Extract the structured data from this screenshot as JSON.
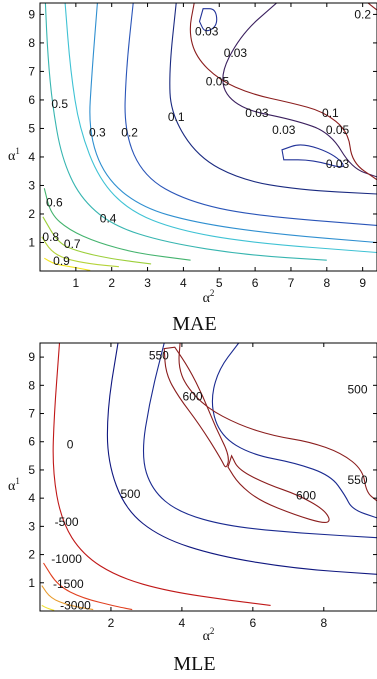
{
  "chart_data": [
    {
      "type": "contour",
      "title": "MAE",
      "xlabel": "α",
      "xlabel_sup": "2",
      "ylabel": "α",
      "ylabel_sup": "1",
      "xlim": [
        0,
        9.4
      ],
      "ylim": [
        0,
        9.4
      ],
      "xticks": [
        1,
        2,
        3,
        4,
        5,
        6,
        7,
        8,
        9
      ],
      "yticks": [
        1,
        2,
        3,
        4,
        5,
        6,
        7,
        8,
        9
      ],
      "levels": [
        {
          "level": "0.9",
          "color": "#f2e620",
          "points": [
            [
              0.12,
              0.45
            ],
            [
              0.35,
              0.28
            ],
            [
              0.6,
              0.2
            ],
            [
              1.0,
              0.12
            ],
            [
              1.4,
              0.02
            ]
          ]
        },
        {
          "level": "0.8",
          "color": "#b5d33a",
          "points": [
            [
              0.05,
              1.2
            ],
            [
              0.3,
              0.7
            ],
            [
              0.7,
              0.42
            ],
            [
              1.4,
              0.25
            ],
            [
              2.2,
              0.15
            ]
          ]
        },
        {
          "level": "0.7",
          "color": "#9ccf3a",
          "points": [
            [
              0.08,
              1.9
            ],
            [
              0.5,
              1.0
            ],
            [
              1.0,
              0.7
            ],
            [
              2.0,
              0.42
            ],
            [
              3.1,
              0.25
            ]
          ]
        },
        {
          "level": "0.6",
          "color": "#44b36e",
          "points": [
            [
              0.12,
              2.9
            ],
            [
              0.3,
              2.0
            ],
            [
              0.8,
              1.45
            ],
            [
              1.6,
              1.0
            ],
            [
              2.7,
              0.62
            ],
            [
              4.2,
              0.38
            ]
          ]
        },
        {
          "level": "0.5",
          "color": "#37b5b0",
          "points": [
            [
              0.15,
              9.4
            ],
            [
              0.22,
              7.5
            ],
            [
              0.35,
              5.8
            ],
            [
              0.6,
              4.0
            ],
            [
              1.1,
              2.6
            ],
            [
              2.0,
              1.6
            ],
            [
              3.5,
              1.0
            ],
            [
              5.8,
              0.55
            ],
            [
              8.0,
              0.38
            ]
          ]
        },
        {
          "level": "0.4",
          "color": "#3fc2d4",
          "points": [
            [
              0.7,
              9.4
            ],
            [
              0.85,
              7.0
            ],
            [
              1.1,
              5.0
            ],
            [
              1.65,
              3.2
            ],
            [
              2.5,
              2.1
            ],
            [
              3.8,
              1.45
            ],
            [
              5.8,
              1.0
            ],
            [
              9.4,
              0.65
            ]
          ]
        },
        {
          "level": "0.3",
          "color": "#2f8fd0",
          "points": [
            [
              1.6,
              9.4
            ],
            [
              1.45,
              7.0
            ],
            [
              1.35,
              4.9
            ],
            [
              1.8,
              3.3
            ],
            [
              2.8,
              2.25
            ],
            [
              4.3,
              1.7
            ],
            [
              6.5,
              1.3
            ],
            [
              9.4,
              1.0
            ]
          ]
        },
        {
          "level": "0.2",
          "color": "#2a55b8",
          "points": [
            [
              2.6,
              9.4
            ],
            [
              2.4,
              7.0
            ],
            [
              2.35,
              4.85
            ],
            [
              2.9,
              3.3
            ],
            [
              4.1,
              2.45
            ],
            [
              5.9,
              1.95
            ],
            [
              9.4,
              1.6
            ]
          ]
        },
        {
          "level": "0.1",
          "color": "#1a2a80",
          "points": [
            [
              3.8,
              9.4
            ],
            [
              3.6,
              7.0
            ],
            [
              3.65,
              5.5
            ],
            [
              4.4,
              4.0
            ],
            [
              5.6,
              3.2
            ],
            [
              7.2,
              2.85
            ],
            [
              9.4,
              2.7
            ]
          ]
        },
        {
          "level": "0.05",
          "color": "#3a1f5e",
          "points": [
            [
              6.6,
              9.4
            ],
            [
              5.6,
              8.3
            ],
            [
              4.95,
              6.7
            ],
            [
              5.5,
              5.7
            ],
            [
              7.1,
              5.3
            ],
            [
              8.1,
              4.85
            ],
            [
              8.7,
              3.6
            ],
            [
              9.4,
              3.3
            ]
          ]
        },
        {
          "level": "0.2",
          "color": "#8b1e1e",
          "points": [
            [
              4.3,
              9.4
            ],
            [
              4.15,
              8.4
            ],
            [
              4.35,
              7.5
            ],
            [
              5.0,
              6.7
            ],
            [
              5.9,
              6.2
            ],
            [
              7.0,
              5.9
            ],
            [
              7.9,
              5.6
            ],
            [
              8.6,
              4.9
            ],
            [
              8.7,
              3.8
            ],
            [
              9.4,
              3.2
            ]
          ]
        },
        {
          "level": "0.03",
          "color": "#223399",
          "closed": true,
          "points": [
            [
              4.55,
              9.2
            ],
            [
              4.9,
              9.2
            ],
            [
              4.95,
              8.6
            ],
            [
              4.6,
              8.35
            ],
            [
              4.45,
              8.75
            ]
          ]
        },
        {
          "level": "0.03",
          "color": "#223399",
          "closed": true,
          "points": [
            [
              6.75,
              4.25
            ],
            [
              7.3,
              4.5
            ],
            [
              8.2,
              4.1
            ],
            [
              8.6,
              3.55
            ],
            [
              7.6,
              3.9
            ],
            [
              6.8,
              3.9
            ]
          ]
        },
        {
          "level": "0.3",
          "color": "#8b1e1e",
          "points": [
            [
              9.15,
              9.4
            ],
            [
              9.4,
              9.15
            ]
          ]
        }
      ],
      "labels": [
        {
          "text": "0.2",
          "x": 9.0,
          "y": 9.0
        },
        {
          "text": "0.03",
          "x": 4.65,
          "y": 8.4
        },
        {
          "text": "0.03",
          "x": 5.45,
          "y": 7.65
        },
        {
          "text": "0.05",
          "x": 4.95,
          "y": 6.65
        },
        {
          "text": "0.03",
          "x": 6.05,
          "y": 5.55
        },
        {
          "text": "0.1",
          "x": 8.1,
          "y": 5.55
        },
        {
          "text": "0.5",
          "x": 0.55,
          "y": 5.85
        },
        {
          "text": "0.1",
          "x": 3.8,
          "y": 5.4
        },
        {
          "text": "0.3",
          "x": 1.6,
          "y": 4.85
        },
        {
          "text": "0.2",
          "x": 2.5,
          "y": 4.85
        },
        {
          "text": "0.03",
          "x": 6.8,
          "y": 4.95
        },
        {
          "text": "0.05",
          "x": 8.3,
          "y": 4.95
        },
        {
          "text": "0.03",
          "x": 8.3,
          "y": 3.75
        },
        {
          "text": "0.6",
          "x": 0.4,
          "y": 2.4
        },
        {
          "text": "0.4",
          "x": 1.9,
          "y": 1.85
        },
        {
          "text": "0.8",
          "x": 0.3,
          "y": 1.2
        },
        {
          "text": "0.7",
          "x": 0.9,
          "y": 0.95
        },
        {
          "text": "0.9",
          "x": 0.6,
          "y": 0.35
        }
      ]
    },
    {
      "type": "contour",
      "title": "MLE",
      "xlabel": "α",
      "xlabel_sup": "2",
      "ylabel": "α",
      "ylabel_sup": "1",
      "xlim": [
        0,
        9.5
      ],
      "ylim": [
        0,
        9.5
      ],
      "xticks": [
        2,
        4,
        6,
        8
      ],
      "yticks": [
        1,
        2,
        3,
        4,
        5,
        6,
        7,
        8,
        9
      ],
      "levels": [
        {
          "level": "-3000",
          "color": "#f0e030",
          "points": [
            [
              0.05,
              0.2
            ],
            [
              0.2,
              0.1
            ],
            [
              0.4,
              0.02
            ]
          ]
        },
        {
          "level": "-1500",
          "color": "#e89a2a",
          "points": [
            [
              0.05,
              0.9
            ],
            [
              0.3,
              0.45
            ],
            [
              0.8,
              0.2
            ],
            [
              1.5,
              0.05
            ]
          ]
        },
        {
          "level": "-1000",
          "color": "#e04020",
          "points": [
            [
              0.1,
              1.7
            ],
            [
              0.5,
              0.9
            ],
            [
              1.2,
              0.45
            ],
            [
              2.2,
              0.15
            ],
            [
              2.6,
              0.05
            ]
          ]
        },
        {
          "level": "-500",
          "color": "#c01818",
          "points": [
            [
              0.55,
              9.5
            ],
            [
              0.4,
              7.0
            ],
            [
              0.35,
              5.0
            ],
            [
              0.6,
              3.2
            ],
            [
              1.2,
              2.0
            ],
            [
              2.2,
              1.2
            ],
            [
              3.6,
              0.7
            ],
            [
              5.5,
              0.35
            ],
            [
              6.5,
              0.2
            ]
          ]
        },
        {
          "level": "0",
          "color": "#101880",
          "points": [
            [
              2.2,
              9.5
            ],
            [
              1.9,
              7.2
            ],
            [
              1.9,
              5.3
            ],
            [
              2.4,
              3.6
            ],
            [
              3.4,
              2.6
            ],
            [
              5.0,
              1.95
            ],
            [
              7.2,
              1.5
            ],
            [
              9.5,
              1.3
            ]
          ]
        },
        {
          "level": "500",
          "color": "#1a2a90",
          "points": [
            [
              3.5,
              9.5
            ],
            [
              3.1,
              7.5
            ],
            [
              2.85,
              5.5
            ],
            [
              3.15,
              4.3
            ],
            [
              3.9,
              3.5
            ],
            [
              5.3,
              3.0
            ],
            [
              7.4,
              2.75
            ],
            [
              9.5,
              2.6
            ]
          ]
        },
        {
          "level": "550",
          "color": "#1a2a90",
          "points": [
            [
              5.6,
              9.5
            ],
            [
              5.0,
              8.5
            ],
            [
              4.8,
              7.3
            ],
            [
              5.1,
              6.2
            ],
            [
              5.95,
              5.55
            ],
            [
              7.2,
              5.25
            ],
            [
              8.2,
              4.8
            ],
            [
              8.6,
              4.1
            ],
            [
              8.8,
              3.6
            ],
            [
              9.5,
              3.3
            ]
          ]
        },
        {
          "level": "500",
          "color": "#8b1e1e",
          "points": [
            [
              3.95,
              9.5
            ],
            [
              3.9,
              8.7
            ],
            [
              4.1,
              8.0
            ],
            [
              4.7,
              7.2
            ],
            [
              5.6,
              6.6
            ],
            [
              6.6,
              6.2
            ],
            [
              7.6,
              6.0
            ],
            [
              8.5,
              5.6
            ],
            [
              9.1,
              5.0
            ],
            [
              9.2,
              4.2
            ],
            [
              9.5,
              3.9
            ]
          ]
        },
        {
          "level": "600",
          "color": "#8b1e1e",
          "closed": true,
          "points": [
            [
              3.5,
              9.3
            ],
            [
              3.55,
              8.4
            ],
            [
              3.9,
              7.6
            ],
            [
              4.5,
              6.6
            ],
            [
              5.1,
              5.4
            ],
            [
              5.25,
              5.0
            ],
            [
              5.35,
              5.5
            ],
            [
              4.95,
              6.5
            ],
            [
              4.6,
              7.6
            ],
            [
              4.2,
              8.6
            ],
            [
              3.8,
              9.35
            ]
          ]
        },
        {
          "level": "600",
          "color": "#8b1e1e",
          "closed": true,
          "points": [
            [
              5.4,
              5.5
            ],
            [
              5.6,
              5.0
            ],
            [
              6.4,
              4.5
            ],
            [
              7.3,
              4.1
            ],
            [
              8.0,
              3.6
            ],
            [
              8.2,
              3.2
            ],
            [
              8.0,
              3.1
            ],
            [
              7.2,
              3.4
            ],
            [
              6.2,
              3.9
            ],
            [
              5.6,
              4.5
            ],
            [
              5.3,
              5.1
            ]
          ]
        }
      ],
      "labels": [
        {
          "text": "550",
          "x": 3.35,
          "y": 9.05
        },
        {
          "text": "500",
          "x": 8.95,
          "y": 7.85
        },
        {
          "text": "600",
          "x": 4.3,
          "y": 7.6
        },
        {
          "text": "0",
          "x": 0.85,
          "y": 5.9
        },
        {
          "text": "550",
          "x": 8.95,
          "y": 4.65
        },
        {
          "text": "500",
          "x": 2.55,
          "y": 4.15
        },
        {
          "text": "600",
          "x": 7.5,
          "y": 4.1
        },
        {
          "text": "-500",
          "x": 0.75,
          "y": 3.15
        },
        {
          "text": "-1000",
          "x": 0.75,
          "y": 1.85
        },
        {
          "text": "-1500",
          "x": 0.8,
          "y": 0.95
        },
        {
          "text": "-3000",
          "x": 1.0,
          "y": 0.2
        }
      ]
    }
  ]
}
